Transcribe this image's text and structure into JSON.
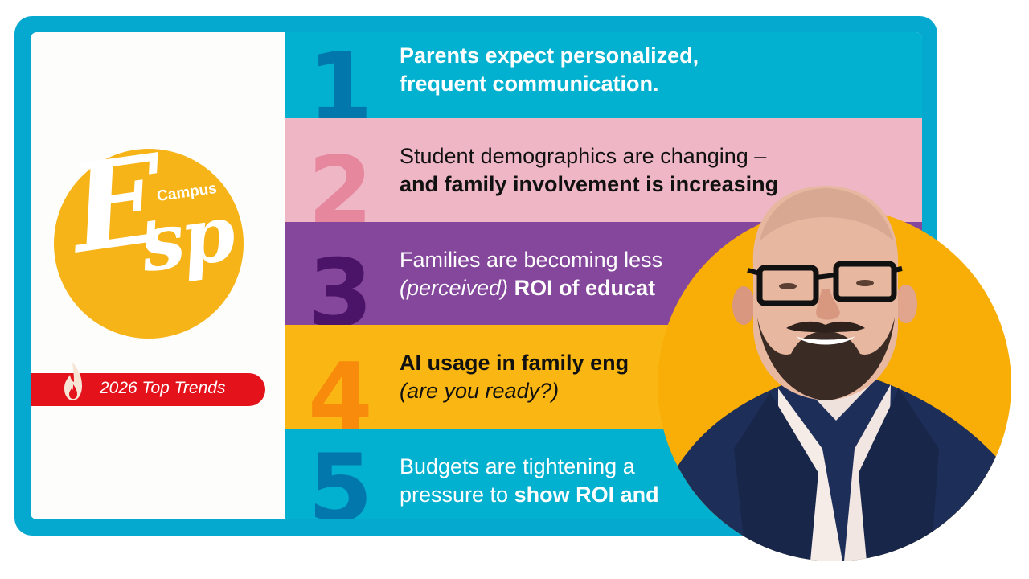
{
  "brand": {
    "logo_script": "Esp",
    "logo_e": "E",
    "logo_sp": "sp",
    "logo_wordmark": "Campus",
    "logo_color": "#f6b418",
    "banner_label": "2026 Top Trends",
    "banner_color": "#e3121b",
    "banner_icon": "fire-icon"
  },
  "frame": {
    "color": "#05a9cf"
  },
  "trends": [
    {
      "number": "1",
      "bg": "#02b1cf",
      "num_color": "#0277ab",
      "text_color": "#ffffff",
      "line1": [
        {
          "t": "Parents expect personalized,",
          "style": "bold"
        }
      ],
      "line2": [
        {
          "t": "frequent communication.",
          "style": "bold"
        }
      ]
    },
    {
      "number": "2",
      "bg": "#efb6c6",
      "num_color": "#e6879e",
      "text_color": "#111111",
      "line1": [
        {
          "t": "Student demographics are changing –",
          "style": "normal"
        }
      ],
      "line2": [
        {
          "t": "and family involvement is increasing",
          "style": "bold"
        }
      ]
    },
    {
      "number": "3",
      "bg": "#84479b",
      "num_color": "#4c1468",
      "text_color": "#ffffff",
      "line1": [
        {
          "t": "Families are becoming less",
          "style": "normal"
        }
      ],
      "line2": [
        {
          "t": "(perceived)",
          "style": "italic"
        },
        {
          "t": " ROI of educat",
          "style": "bold"
        }
      ]
    },
    {
      "number": "4",
      "bg": "#fab713",
      "num_color": "#f88a0c",
      "text_color": "#111111",
      "line1": [
        {
          "t": "AI usage in family eng",
          "style": "bold"
        }
      ],
      "line2": [
        {
          "t": "(are you ready?)",
          "style": "italic"
        }
      ]
    },
    {
      "number": "5",
      "bg": "#02b1cf",
      "num_color": "#0277ab",
      "text_color": "#ffffff",
      "line1": [
        {
          "t": "Budgets are tightening a",
          "style": "normal"
        }
      ],
      "line2": [
        {
          "t": "pressure to ",
          "style": "normal"
        },
        {
          "t": "show ROI and",
          "style": "bold"
        }
      ]
    }
  ],
  "portrait": {
    "description": "smiling bald man with black glasses, beard, navy blazer and white shirt",
    "bg_color": "#f9ad07",
    "jacket_color": "#1d2e58",
    "shirt_color": "#f5ece8"
  }
}
